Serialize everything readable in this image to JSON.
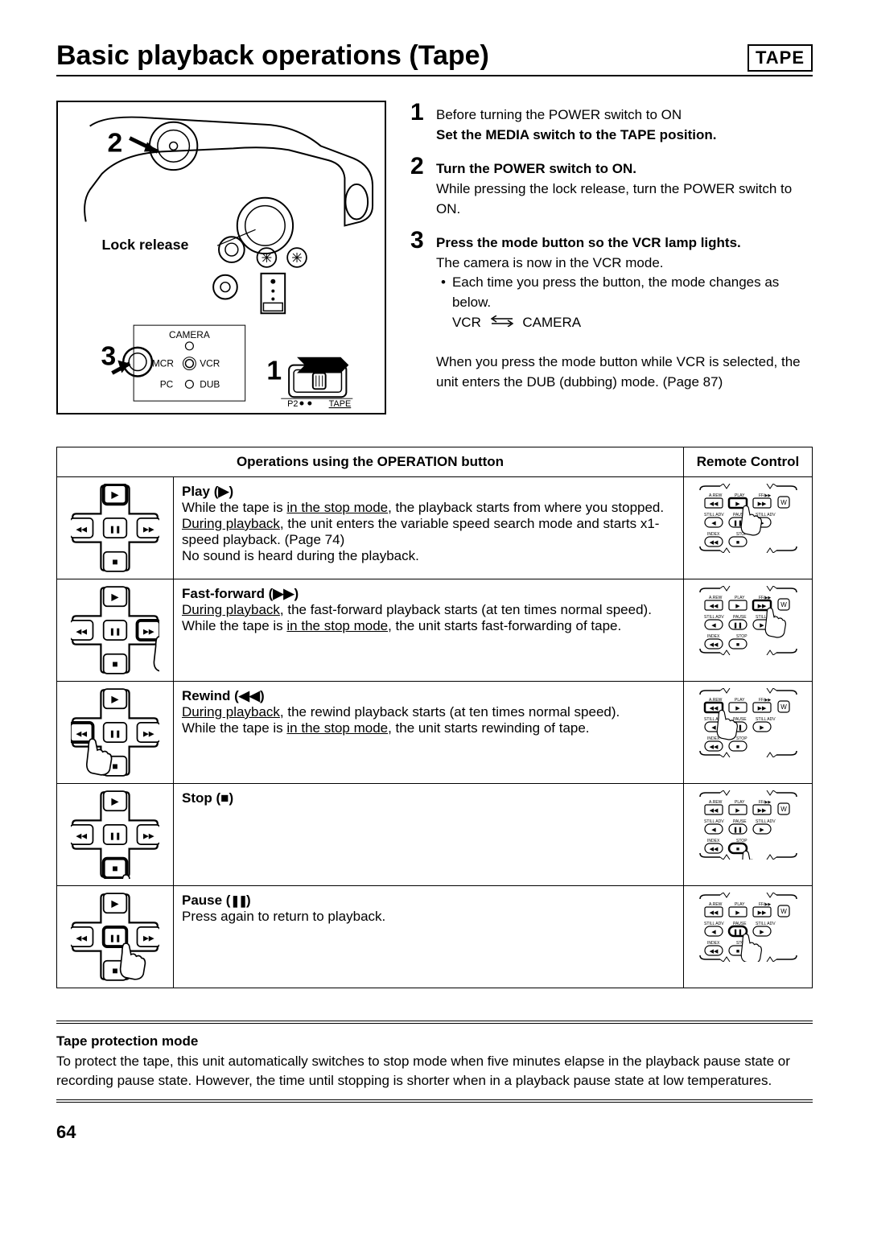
{
  "title": "Basic playback operations (Tape)",
  "badge": "TAPE",
  "diagram": {
    "lock_release": "Lock release",
    "camera": "CAMERA",
    "mcr": "MCR",
    "vcr": "VCR",
    "pc": "PC",
    "dub": "DUB",
    "p2": "P2",
    "tape": "TAPE",
    "num1": "1",
    "num2": "2",
    "num3": "3"
  },
  "steps": [
    {
      "num": "1",
      "line1": "Before turning the POWER switch to ON",
      "bold1": "Set the MEDIA switch to the TAPE position."
    },
    {
      "num": "2",
      "bold1": "Turn the POWER switch to ON.",
      "line1": "While pressing the lock release, turn the POWER switch to ON."
    },
    {
      "num": "3",
      "bold1": "Press the mode button so the VCR lamp lights.",
      "line1": "The camera is now in the VCR mode.",
      "bullet1": "Each time you press the button, the mode changes as below.",
      "vcr": "VCR",
      "camera": "CAMERA",
      "para2": "When you press the mode button while VCR is selected, the unit enters the DUB (dubbing) mode. (Page 87)"
    }
  ],
  "table": {
    "header_ops": "Operations using the OPERATION button",
    "header_remote": "Remote Control",
    "rows": [
      {
        "title": "Play (",
        "glyph": "▶",
        "title_end": ")",
        "body_parts": [
          {
            "t": "While the tape is "
          },
          {
            "u": "in the stop mode"
          },
          {
            "t": ", the playback starts from where you stopped."
          }
        ],
        "body_parts2": [
          {
            "u": "During playback"
          },
          {
            "t": ", the unit enters the variable speed search mode and starts x1-speed playback. (Page 74)"
          }
        ],
        "body_line3": "No sound is heard during the playback.",
        "highlight": "play"
      },
      {
        "title": "Fast-forward (",
        "glyph": "▶▶",
        "title_end": ")",
        "body_parts": [
          {
            "u": "During playback"
          },
          {
            "t": ", the fast-forward playback starts (at ten times normal speed)."
          }
        ],
        "body_parts2": [
          {
            "t": "While the tape is "
          },
          {
            "u": "in the stop mode"
          },
          {
            "t": ", the unit starts fast-forwarding of tape."
          }
        ],
        "highlight": "ff"
      },
      {
        "title": "Rewind (",
        "glyph": "◀◀",
        "title_end": ")",
        "body_parts": [
          {
            "u": "During playback"
          },
          {
            "t": ", the rewind playback starts (at ten times normal speed)."
          }
        ],
        "body_parts2": [
          {
            "t": "While the tape is "
          },
          {
            "u": "in the stop mode"
          },
          {
            "t": ", the unit starts rewinding of tape."
          }
        ],
        "highlight": "rew"
      },
      {
        "title": "Stop (",
        "glyph": "■",
        "title_end": ")",
        "highlight": "stop"
      },
      {
        "title": "Pause (",
        "glyph": "❚❚",
        "title_end": ")",
        "body_line3": "Press again to return to playback.",
        "highlight": "pause"
      }
    ]
  },
  "footer": {
    "title": "Tape protection mode",
    "body": "To protect the tape, this unit automatically switches to stop mode when five minutes elapse in the playback pause state or recording pause state. However, the time until stopping is shorter when in a playback pause state at low temperatures."
  },
  "page_number": "64"
}
